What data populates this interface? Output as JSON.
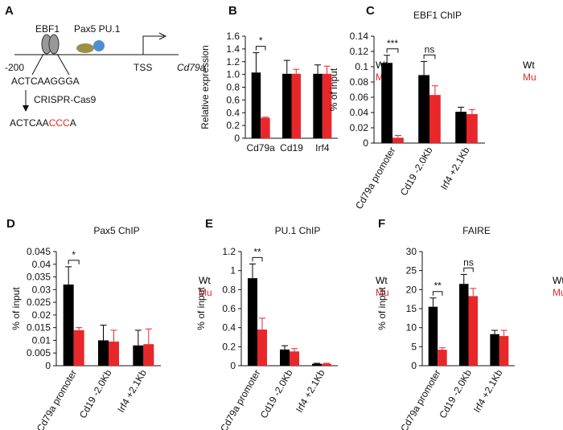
{
  "diagram": {
    "panel": "A",
    "ebf1": "EBF1",
    "pax5_pu1": "Pax5 PU.1",
    "position": "-200",
    "tss": "TSS",
    "gene": "Cd79a",
    "seq_wt": "ACTCAAGGGA",
    "method": "CRISPR-Cas9",
    "seq_mut": [
      "ACTCAA",
      "CCC",
      "A"
    ]
  },
  "chart_data": [
    {
      "type": "bar",
      "panel": "B",
      "ylabel": "Relative expression",
      "categories": [
        "Cd79a",
        "Cd19",
        "Irf4"
      ],
      "series": [
        {
          "name": "Wt",
          "color": "#000000",
          "values": [
            1.03,
            1.01,
            1.01
          ],
          "errors": [
            0.31,
            0.21,
            0.14
          ]
        },
        {
          "name": "Mu",
          "color": "#e8272b",
          "values": [
            0.32,
            1.01,
            1.01
          ],
          "errors": [
            0.01,
            0.07,
            0.12
          ]
        }
      ],
      "annotations": [
        "*",
        null,
        null
      ],
      "ylim": [
        0,
        1.6
      ],
      "yticks": [
        0,
        0.2,
        0.4,
        0.6,
        0.8,
        {
          "value": 1,
          "label": "1.0"
        },
        1.2,
        1.4,
        1.6
      ]
    },
    {
      "type": "bar",
      "panel": "C",
      "title": "EBF1 ChIP",
      "ylabel": "% of input",
      "categories": [
        "Cd79a promoter",
        "Cd19 -2.0Kb",
        "Irf4 +2.1Kb"
      ],
      "series": [
        {
          "name": "Wt",
          "color": "#000000",
          "values": [
            0.105,
            0.089,
            0.041
          ],
          "errors": [
            0.01,
            0.018,
            0.006
          ]
        },
        {
          "name": "Mu",
          "color": "#e8272b",
          "values": [
            0.007,
            0.063,
            0.038
          ],
          "errors": [
            0.003,
            0.012,
            0.006
          ]
        }
      ],
      "annotations": [
        "***",
        "ns",
        null
      ],
      "ylim": [
        0,
        0.14
      ],
      "yticks": [
        0,
        0.02,
        0.04,
        0.06,
        0.08,
        0.1,
        0.12,
        0.14
      ]
    },
    {
      "type": "bar",
      "panel": "D",
      "title": "Pax5 ChIP",
      "ylabel": "% of input",
      "categories": [
        "Cd79a promoter",
        "Cd19 -2.0Kb",
        "Irf4 +2.1Kb"
      ],
      "series": [
        {
          "name": "Wt",
          "color": "#000000",
          "values": [
            0.032,
            0.01,
            0.008
          ],
          "errors": [
            0.007,
            0.006,
            0.006
          ]
        },
        {
          "name": "Mu",
          "color": "#e8272b",
          "values": [
            0.014,
            0.0095,
            0.0085
          ],
          "errors": [
            0.001,
            0.0045,
            0.006
          ]
        }
      ],
      "annotations": [
        "*",
        null,
        null
      ],
      "ylim": [
        0,
        0.045
      ],
      "yticks": [
        0,
        0.005,
        0.01,
        0.015,
        0.02,
        0.025,
        0.03,
        0.035,
        0.04,
        0.045
      ]
    },
    {
      "type": "bar",
      "panel": "E",
      "title": "PU.1 ChIP",
      "ylabel": "% of input",
      "categories": [
        "Cd79a promoter",
        "Cd19 -2.0Kb",
        "Irf4 +2.1Kb"
      ],
      "series": [
        {
          "name": "Wt",
          "color": "#000000",
          "values": [
            0.92,
            0.17,
            0.02
          ],
          "errors": [
            0.15,
            0.04,
            0.005
          ]
        },
        {
          "name": "Mu",
          "color": "#e8272b",
          "values": [
            0.38,
            0.15,
            0.02
          ],
          "errors": [
            0.12,
            0.03,
            0.005
          ]
        }
      ],
      "annotations": [
        "**",
        null,
        null
      ],
      "ylim": [
        0,
        1.2
      ],
      "yticks": [
        0,
        0.2,
        0.4,
        0.6,
        0.8,
        1,
        1.2
      ]
    },
    {
      "type": "bar",
      "panel": "F",
      "title": "FAIRE",
      "ylabel": "% of input",
      "categories": [
        "Cd79a promoter",
        "Cd19 -2.0Kb",
        "Irf4 +2.1Kb"
      ],
      "series": [
        {
          "name": "Wt",
          "color": "#000000",
          "values": [
            15.5,
            21.5,
            8.3
          ],
          "errors": [
            2.3,
            2.5,
            1
          ]
        },
        {
          "name": "Mu",
          "color": "#e8272b",
          "values": [
            4.2,
            18.3,
            7.8
          ],
          "errors": [
            0.5,
            2,
            1.5
          ]
        }
      ],
      "annotations": [
        "**",
        "ns",
        null
      ],
      "ylim": [
        0,
        30
      ],
      "yticks": [
        0,
        5,
        10,
        15,
        20,
        25,
        30
      ]
    }
  ]
}
